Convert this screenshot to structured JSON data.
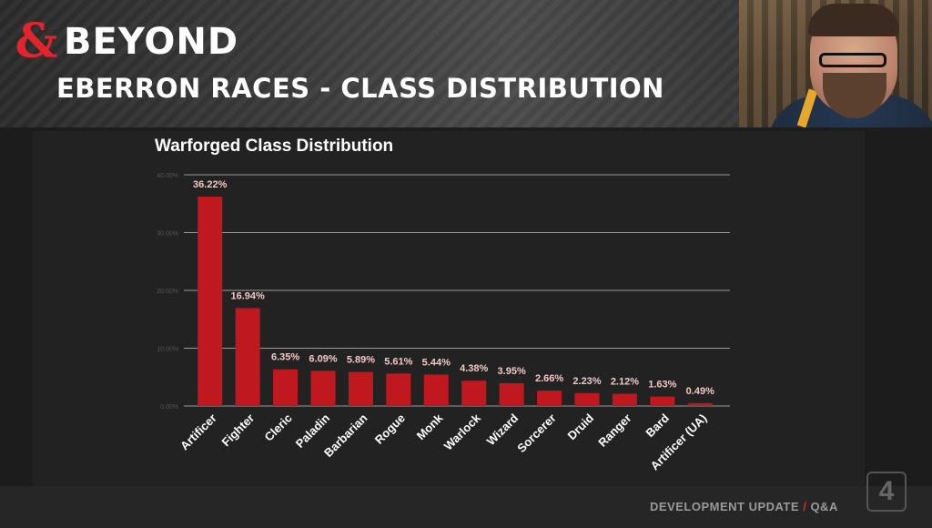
{
  "brand": {
    "mark": "&",
    "name": "BEYOND"
  },
  "page_title": "EBERRON RACES - CLASS DISTRIBUTION",
  "footer": {
    "left": "DEVELOPMENT UPDATE",
    "sep": "/",
    "right": "Q&A"
  },
  "corner_badge": "4",
  "colors": {
    "bar": "#c0181f",
    "label": "#f3c7c7",
    "grid": "#9a9a9a",
    "accent": "#e4232b"
  },
  "chart_data": {
    "type": "bar",
    "title": "Warforged Class Distribution",
    "categories": [
      "Artificer",
      "Fighter",
      "Cleric",
      "Paladin",
      "Barbarian",
      "Rogue",
      "Monk",
      "Warlock",
      "Wizard",
      "Sorcerer",
      "Druid",
      "Ranger",
      "Bard",
      "Artificer (UA)"
    ],
    "values": [
      36.22,
      16.94,
      6.35,
      6.09,
      5.89,
      5.61,
      5.44,
      4.38,
      3.95,
      2.66,
      2.23,
      2.12,
      1.63,
      0.49
    ],
    "data_labels": [
      "36.22%",
      "16.94%",
      "6.35%",
      "6.09%",
      "5.89%",
      "5.61%",
      "5.44%",
      "4.38%",
      "3.95%",
      "2.66%",
      "2.23%",
      "2.12%",
      "1.63%",
      "0.49%"
    ],
    "y_ticks": [
      "0.00%",
      "10.00%",
      "20.00%",
      "30.00%",
      "40.00%"
    ],
    "ylim": [
      0,
      40
    ],
    "grid": true,
    "legend": "none"
  }
}
